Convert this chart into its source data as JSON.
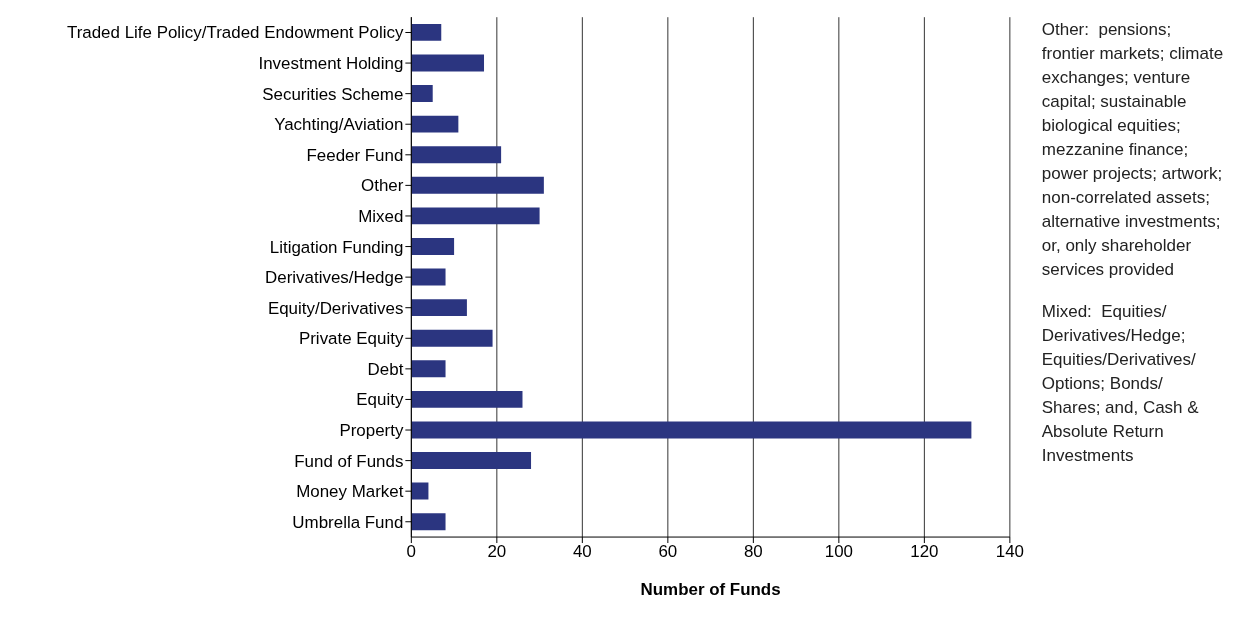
{
  "chart_data": {
    "type": "bar",
    "orientation": "horizontal",
    "xlabel": "Number of Funds",
    "categories": [
      "Traded Life Policy/Traded Endowment Policy",
      "Investment Holding",
      "Securities Scheme",
      "Yachting/Aviation",
      "Feeder Fund",
      "Other",
      "Mixed",
      "Litigation Funding",
      "Derivatives/Hedge",
      "Equity/Derivatives",
      "Private Equity",
      "Debt",
      "Equity",
      "Property",
      "Fund of Funds",
      "Money Market",
      "Umbrella Fund"
    ],
    "values": [
      7,
      17,
      5,
      11,
      21,
      31,
      30,
      10,
      8,
      13,
      19,
      8,
      26,
      131,
      28,
      4,
      8
    ],
    "color": "#2b3580",
    "xlim": [
      0,
      140
    ],
    "xticks": [
      0,
      20,
      40,
      60,
      80,
      100,
      120,
      140
    ],
    "grid": "x",
    "legend": false,
    "annotations": [
      "Other:  pensions; frontier markets; climate exchanges; venture capital; sustainable biological equities; mezzanine finance; power projects; artwork; non-correlated assets; alternative investments; or, only shareholder services provided",
      "Mixed:  Equities/ Derivatives/Hedge; Equities/Derivatives/ Options; Bonds/ Shares; and, Cash & Absolute Return Investments"
    ]
  }
}
